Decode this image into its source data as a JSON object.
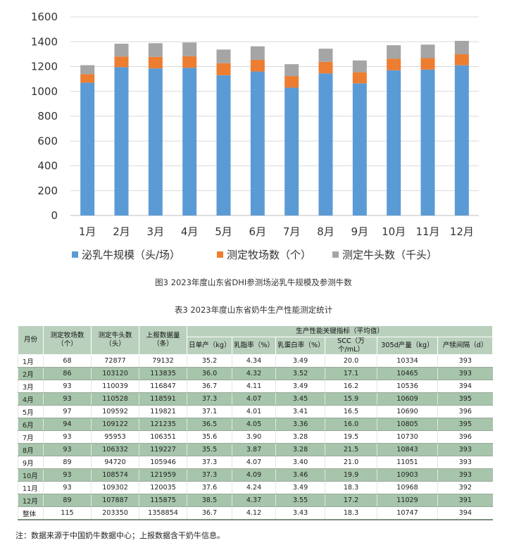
{
  "chart_data": {
    "type": "bar",
    "stacked": true,
    "categories": [
      "1月",
      "2月",
      "3月",
      "4月",
      "5月",
      "6月",
      "7月",
      "8月",
      "9月",
      "10月",
      "11月",
      "12月"
    ],
    "yticks": [
      "0",
      "200",
      "400",
      "600",
      "800",
      "1000",
      "1200",
      "1400",
      "1600"
    ],
    "ylim": [
      0,
      1600
    ],
    "grid": true,
    "legend_position": "bottom",
    "series": [
      {
        "name": "泌乳牛规模（头/场）",
        "color": "#5b9bd5",
        "values": [
          1070,
          1195,
          1185,
          1190,
          1130,
          1160,
          1030,
          1145,
          1065,
          1170,
          1175,
          1210
        ]
      },
      {
        "name": "测定牧场数（个）",
        "color": "#ed7d31",
        "values": [
          68,
          86,
          93,
          93,
          97,
          94,
          93,
          93,
          89,
          93,
          93,
          89
        ]
      },
      {
        "name": "测定牛头数（千头）",
        "color": "#a5a5a5",
        "values": [
          73,
          103,
          110,
          111,
          110,
          109,
          96,
          106,
          95,
          109,
          109,
          108
        ]
      }
    ]
  },
  "figure_caption": "图3 2023年度山东省DHI参测场泌乳牛规模及参测牛数",
  "table": {
    "caption": "表3 2023年度山东省奶牛生产性能测定统计",
    "headers": {
      "month": "月份",
      "farms": "测定牧场数（个）",
      "cows": "测定牛头数（头）",
      "reported": "上报数据量（条）",
      "group": "生产性能关键指标（平均值）",
      "daily_yield": "日单产（kg）",
      "fat": "乳脂率（%）",
      "protein": "乳蛋白率（%）",
      "scc": "SCC（万个/mL）",
      "yield305": "305d产量（kg）",
      "calving_interval": "产犊间隔（d）"
    },
    "rows": [
      [
        "1月",
        "68",
        "72877",
        "79132",
        "35.2",
        "4.34",
        "3.49",
        "20.0",
        "10334",
        "393"
      ],
      [
        "2月",
        "86",
        "103120",
        "113835",
        "36.0",
        "4.32",
        "3.52",
        "17.1",
        "10465",
        "393"
      ],
      [
        "3月",
        "93",
        "110039",
        "116847",
        "36.7",
        "4.11",
        "3.49",
        "16.2",
        "10536",
        "394"
      ],
      [
        "4月",
        "93",
        "110528",
        "118591",
        "37.3",
        "4.07",
        "3.45",
        "15.9",
        "10609",
        "395"
      ],
      [
        "5月",
        "97",
        "109592",
        "119821",
        "37.1",
        "4.01",
        "3.41",
        "16.5",
        "10690",
        "396"
      ],
      [
        "6月",
        "94",
        "109122",
        "121235",
        "36.5",
        "4.05",
        "3.36",
        "16.0",
        "10805",
        "395"
      ],
      [
        "7月",
        "93",
        "95953",
        "106351",
        "35.6",
        "3.90",
        "3.28",
        "19.5",
        "10730",
        "396"
      ],
      [
        "8月",
        "93",
        "106332",
        "119227",
        "35.5",
        "3.87",
        "3.28",
        "21.5",
        "10843",
        "393"
      ],
      [
        "9月",
        "89",
        "94720",
        "105946",
        "37.3",
        "4.07",
        "3.40",
        "21.0",
        "11051",
        "393"
      ],
      [
        "10月",
        "93",
        "108574",
        "121959",
        "37.3",
        "4.09",
        "3.46",
        "19.9",
        "10903",
        "393"
      ],
      [
        "11月",
        "93",
        "109302",
        "120035",
        "37.6",
        "4.24",
        "3.49",
        "18.3",
        "10968",
        "392"
      ],
      [
        "12月",
        "89",
        "107887",
        "115875",
        "38.5",
        "4.37",
        "3.55",
        "17.2",
        "11029",
        "391"
      ],
      [
        "整体",
        "115",
        "203350",
        "1358854",
        "36.7",
        "4.12",
        "3.43",
        "18.3",
        "10747",
        "394"
      ]
    ]
  },
  "footnote": "注：数据来源于中国奶牛数据中心；上报数据含干奶牛信息。"
}
